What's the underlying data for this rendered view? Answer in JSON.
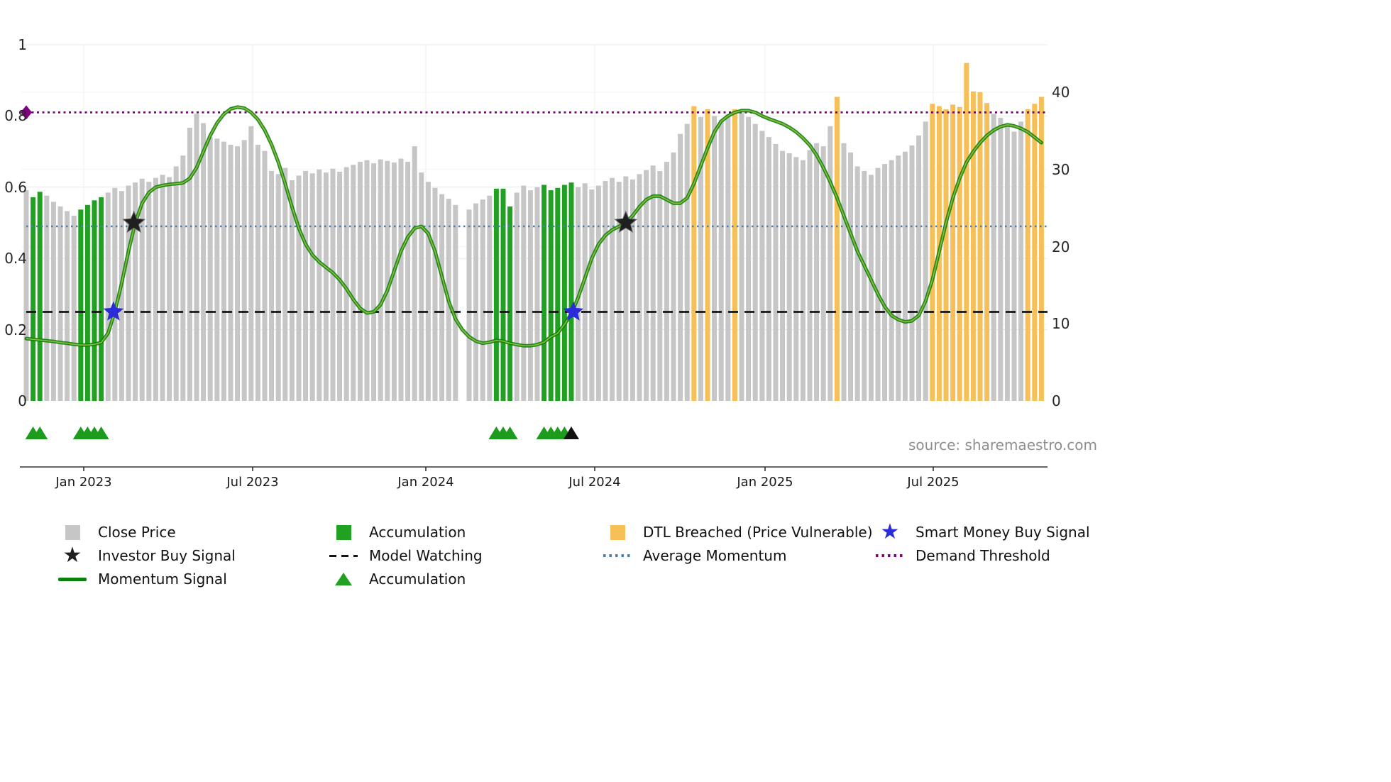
{
  "source_text": "source: sharemaestro.com",
  "icons": {
    "star": "★",
    "triangle_up": "▲",
    "diamond": "◆"
  },
  "colors": {
    "close_price": "#c6c6c6",
    "accumulation": "#21a121",
    "dtl_breached": "#f7bf57",
    "momentum": "#0c800c",
    "momentum_core": "#9cc43e",
    "average_momentum": "#4a7fb0",
    "model_watching": "#141414",
    "demand_threshold": "#800080",
    "investor_star": "#1f1f1f",
    "smart_money_star": "#2b2bd8",
    "accumulation_marker": "#1d9b1d",
    "black_marker": "#111111"
  },
  "chart_data": {
    "type": "bar",
    "title": "",
    "xlabel": "",
    "ylabel": "",
    "left_axis": {
      "lim": [
        0,
        1
      ],
      "tick_labels": [
        "0",
        "0.2",
        "0.4",
        "0.6",
        "0.8",
        "1"
      ],
      "tick_values": [
        0,
        0.2,
        0.4,
        0.6,
        0.8,
        1
      ]
    },
    "right_axis": {
      "lim": [
        0,
        40
      ],
      "tick_labels": [
        "0",
        "10",
        "20",
        "30",
        "40"
      ],
      "tick_values": [
        0,
        10,
        20,
        30,
        40
      ]
    },
    "x_tick_labels": [
      "Jan 2023",
      "Jul 2023",
      "Jan 2024",
      "Jul 2024",
      "Jan 2025",
      "Jul 2025"
    ],
    "x_tick_positions": [
      8.44,
      33.23,
      58.65,
      83.44,
      108.44,
      133.13
    ],
    "grid": true,
    "legend_position": "bottom",
    "bars": {
      "name": "Close Price (weekly, right axis)",
      "kind_codes": {
        "C": "Close Price",
        "A": "Accumulation",
        "D": "DTL Breached (Price Vulnerable)"
      },
      "values": [
        27.3,
        26.4,
        27.1,
        26.6,
        25.8,
        25.2,
        24.6,
        24.0,
        24.8,
        25.4,
        26.0,
        26.4,
        27.0,
        27.6,
        27.2,
        27.9,
        28.3,
        28.8,
        28.4,
        28.9,
        29.3,
        29.0,
        30.4,
        31.8,
        35.4,
        37.2,
        36.0,
        34.2,
        34.0,
        33.6,
        33.2,
        33.0,
        33.8,
        35.6,
        33.2,
        32.4,
        29.8,
        29.4,
        30.2,
        28.6,
        29.2,
        29.8,
        29.5,
        30.0,
        29.6,
        30.1,
        29.7,
        30.3,
        30.6,
        31.0,
        31.2,
        30.8,
        31.3,
        31.1,
        30.9,
        31.4,
        31.0,
        33.0,
        29.6,
        28.4,
        27.6,
        26.8,
        26.2,
        25.4,
        null,
        24.8,
        25.6,
        26.1,
        26.6,
        27.5,
        27.5,
        25.2,
        27.0,
        27.9,
        27.3,
        27.7,
        28.0,
        27.3,
        27.6,
        28.0,
        28.3,
        27.7,
        28.2,
        27.4,
        27.9,
        28.5,
        28.9,
        28.4,
        29.1,
        28.7,
        29.4,
        29.9,
        30.5,
        29.8,
        31.0,
        32.2,
        34.6,
        35.9,
        38.2,
        36.8,
        37.8,
        36.9,
        36.4,
        37.1,
        37.8,
        37.3,
        36.8,
        35.9,
        35.0,
        34.2,
        33.3,
        32.4,
        32.1,
        31.6,
        31.2,
        32.5,
        33.4,
        33.0,
        35.6,
        39.4,
        33.4,
        32.2,
        30.4,
        29.8,
        29.3,
        30.2,
        30.7,
        31.2,
        31.8,
        32.3,
        33.1,
        34.4,
        36.2,
        38.5,
        38.2,
        37.8,
        38.4,
        38.1,
        43.8,
        40.1,
        40.0,
        38.6,
        37.2,
        36.7,
        35.8,
        34.9,
        36.2,
        37.8,
        38.5,
        39.4
      ],
      "kinds": [
        "C",
        "A",
        "A",
        "C",
        "C",
        "C",
        "C",
        "C",
        "A",
        "A",
        "A",
        "A",
        "C",
        "C",
        "C",
        "C",
        "C",
        "C",
        "C",
        "C",
        "C",
        "C",
        "C",
        "C",
        "C",
        "C",
        "C",
        "C",
        "C",
        "C",
        "C",
        "C",
        "C",
        "C",
        "C",
        "C",
        "C",
        "C",
        "C",
        "C",
        "C",
        "C",
        "C",
        "C",
        "C",
        "C",
        "C",
        "C",
        "C",
        "C",
        "C",
        "C",
        "C",
        "C",
        "C",
        "C",
        "C",
        "C",
        "C",
        "C",
        "C",
        "C",
        "C",
        "C",
        "C",
        "C",
        "C",
        "C",
        "C",
        "A",
        "A",
        "A",
        "C",
        "C",
        "C",
        "C",
        "A",
        "A",
        "A",
        "A",
        "A",
        "C",
        "C",
        "C",
        "C",
        "C",
        "C",
        "C",
        "C",
        "C",
        "C",
        "C",
        "C",
        "C",
        "C",
        "C",
        "C",
        "C",
        "D",
        "C",
        "D",
        "C",
        "C",
        "C",
        "D",
        "C",
        "C",
        "C",
        "C",
        "C",
        "C",
        "C",
        "C",
        "C",
        "C",
        "C",
        "C",
        "C",
        "C",
        "D",
        "C",
        "C",
        "C",
        "C",
        "C",
        "C",
        "C",
        "C",
        "C",
        "C",
        "C",
        "C",
        "C",
        "D",
        "D",
        "D",
        "D",
        "D",
        "D",
        "D",
        "D",
        "D",
        "C",
        "C",
        "C",
        "C",
        "C",
        "D",
        "D",
        "D"
      ]
    },
    "momentum_signal": {
      "name": "Momentum Signal (left axis)",
      "values": [
        0.175,
        0.173,
        0.171,
        0.169,
        0.167,
        0.164,
        0.162,
        0.159,
        0.157,
        0.157,
        0.159,
        0.164,
        0.19,
        0.25,
        0.33,
        0.42,
        0.5,
        0.555,
        0.585,
        0.6,
        0.605,
        0.608,
        0.61,
        0.612,
        0.625,
        0.655,
        0.7,
        0.745,
        0.78,
        0.805,
        0.82,
        0.825,
        0.822,
        0.81,
        0.79,
        0.76,
        0.72,
        0.67,
        0.61,
        0.545,
        0.485,
        0.44,
        0.41,
        0.39,
        0.375,
        0.36,
        0.34,
        0.315,
        0.285,
        0.26,
        0.247,
        0.25,
        0.27,
        0.31,
        0.365,
        0.42,
        0.46,
        0.485,
        0.49,
        0.47,
        0.42,
        0.35,
        0.28,
        0.23,
        0.2,
        0.18,
        0.168,
        0.162,
        0.165,
        0.17,
        0.168,
        0.162,
        0.158,
        0.155,
        0.155,
        0.158,
        0.165,
        0.18,
        0.19,
        0.215,
        0.245,
        0.29,
        0.345,
        0.4,
        0.44,
        0.465,
        0.48,
        0.49,
        0.5,
        0.52,
        0.545,
        0.565,
        0.575,
        0.575,
        0.565,
        0.555,
        0.555,
        0.57,
        0.61,
        0.66,
        0.71,
        0.755,
        0.785,
        0.8,
        0.81,
        0.815,
        0.815,
        0.81,
        0.8,
        0.792,
        0.785,
        0.778,
        0.768,
        0.755,
        0.738,
        0.718,
        0.69,
        0.655,
        0.615,
        0.57,
        0.52,
        0.47,
        0.42,
        0.38,
        0.34,
        0.3,
        0.265,
        0.24,
        0.228,
        0.222,
        0.225,
        0.24,
        0.28,
        0.34,
        0.42,
        0.5,
        0.57,
        0.625,
        0.67,
        0.7,
        0.725,
        0.745,
        0.76,
        0.77,
        0.775,
        0.772,
        0.765,
        0.755,
        0.74,
        0.725
      ]
    },
    "reference_lines": {
      "demand_threshold": 0.81,
      "average_momentum": 0.49,
      "model_watching": 0.25
    },
    "signals": {
      "investor_buy": [
        {
          "index": 15.8,
          "value": 0.5
        },
        {
          "index": 88.0,
          "value": 0.5
        }
      ],
      "smart_money_buy": [
        {
          "index": 12.8,
          "value": 0.25
        },
        {
          "index": 80.3,
          "value": 0.25
        }
      ]
    },
    "accumulation_markers": {
      "green_indices": [
        1,
        2,
        8,
        9,
        10,
        11,
        69,
        70,
        71,
        76,
        77,
        78,
        79
      ],
      "black_indices": [
        80
      ]
    }
  },
  "legend": {
    "items": [
      {
        "label": "Close Price",
        "swatch": "square"
      },
      {
        "label": "Investor Buy Signal",
        "swatch": "star"
      },
      {
        "label": "Momentum Signal",
        "swatch": "line"
      },
      {
        "label": "Accumulation",
        "swatch": "square"
      },
      {
        "label": "Model Watching",
        "swatch": "dashed-line"
      },
      {
        "label": "Accumulation",
        "swatch": "triangle"
      },
      {
        "label": "DTL Breached (Price Vulnerable)",
        "swatch": "square"
      },
      {
        "label": "Average Momentum",
        "swatch": "dotted-line"
      },
      {
        "label": "Smart Money Buy Signal",
        "swatch": "star"
      },
      {
        "label": "Demand Threshold",
        "swatch": "dotted-line"
      }
    ]
  }
}
